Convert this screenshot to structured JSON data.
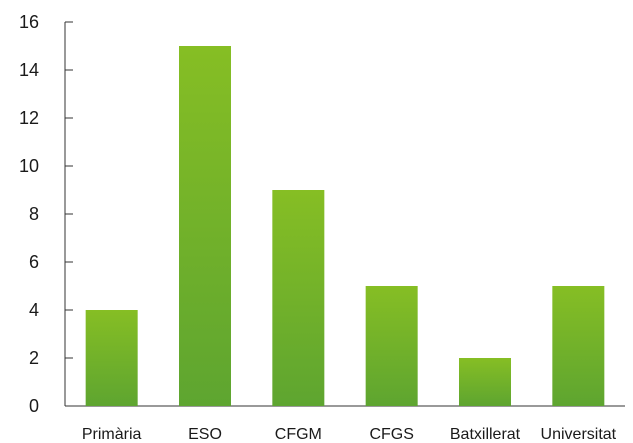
{
  "chart_data": {
    "type": "bar",
    "title": "",
    "xlabel": "",
    "ylabel": "",
    "categories": [
      "Primària",
      "ESO",
      "CFGM",
      "CFGS",
      "Batxillerat",
      "Universitat"
    ],
    "values": [
      4,
      15,
      9,
      5,
      2,
      5
    ],
    "ylim": [
      0,
      16
    ],
    "yticks": [
      0,
      2,
      4,
      6,
      8,
      10,
      12,
      14,
      16
    ],
    "grid": false,
    "legend": "none",
    "colors": {
      "bar_top": "#86BE24",
      "bar_bottom": "#5EA530",
      "axis": "#333333",
      "text": "#1a1a1a"
    }
  }
}
